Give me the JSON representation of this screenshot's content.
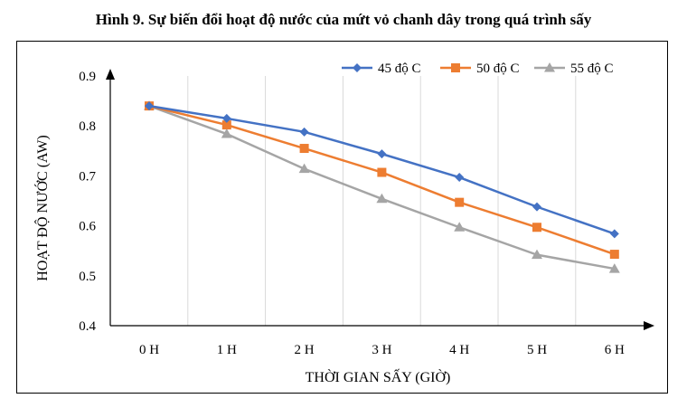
{
  "title": "Hình 9. Sự biến đổi hoạt độ nước của mứt vỏ chanh dây trong quá trình sấy",
  "chart_data": {
    "type": "line",
    "categories": [
      "0H",
      "1H",
      "2H",
      "3H",
      "4H",
      "5H",
      "6H"
    ],
    "xlabel": "THỜI GIAN SẤY (GIỜ)",
    "ylabel": "HOẠT ĐỘ NƯỚC (AW)",
    "ylim": [
      0.4,
      0.9
    ],
    "yticks": [
      "0.4",
      "0.5",
      "0.6",
      "0.7",
      "0.8",
      "0.9"
    ],
    "grid": "vertical",
    "legend_position": "top-right",
    "series": [
      {
        "name": "45 độ C",
        "color": "#4472C4",
        "marker": "diamond",
        "values": [
          0.84,
          0.815,
          0.788,
          0.744,
          0.697,
          0.638,
          0.584
        ]
      },
      {
        "name": "50 độ C",
        "color": "#ED7D31",
        "marker": "square",
        "values": [
          0.84,
          0.802,
          0.755,
          0.707,
          0.647,
          0.597,
          0.543
        ]
      },
      {
        "name": "55 độ C",
        "color": "#A5A5A5",
        "marker": "triangle",
        "values": [
          0.84,
          0.784,
          0.714,
          0.654,
          0.597,
          0.542,
          0.514
        ]
      }
    ]
  }
}
